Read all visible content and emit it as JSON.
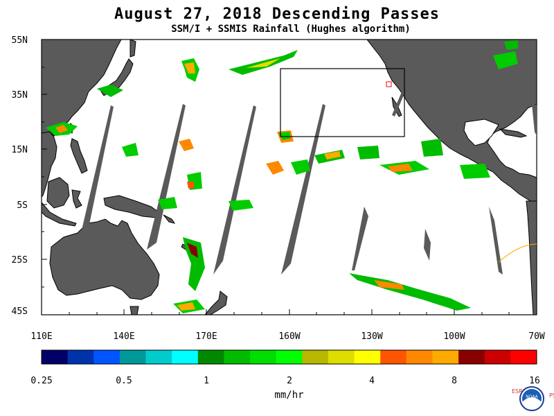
{
  "title": "August 27, 2018  Descending Passes",
  "subtitle": "SSM/I + SSMIS Rainfall (Hughes algorithm)",
  "lat_labels": [
    "55N",
    "35N",
    "15N",
    "5S",
    "25S",
    "45S"
  ],
  "lon_labels": [
    "110E",
    "140E",
    "170E",
    "160W",
    "130W",
    "100W",
    "70W"
  ],
  "colorbar": {
    "colors": [
      "#000066",
      "#0033aa",
      "#0055ff",
      "#009999",
      "#00cccc",
      "#00ffff",
      "#008800",
      "#00bb00",
      "#00dd00",
      "#00ff00",
      "#b8b800",
      "#dddd00",
      "#ffff00",
      "#ff5500",
      "#ff8800",
      "#ffaa00",
      "#880000",
      "#cc0000",
      "#ff0000"
    ],
    "ticks": [
      "0.25",
      "0.5",
      "1",
      "2",
      "4",
      "8",
      "16"
    ],
    "units": "mm/hr"
  },
  "logo": {
    "left_text": "ESRL",
    "right_text": "PSD",
    "center_text": "NOAA"
  },
  "colors": {
    "land": "#5a5a5a",
    "ocean": "#ffffff",
    "swath_gap": "#5a5a5a"
  }
}
